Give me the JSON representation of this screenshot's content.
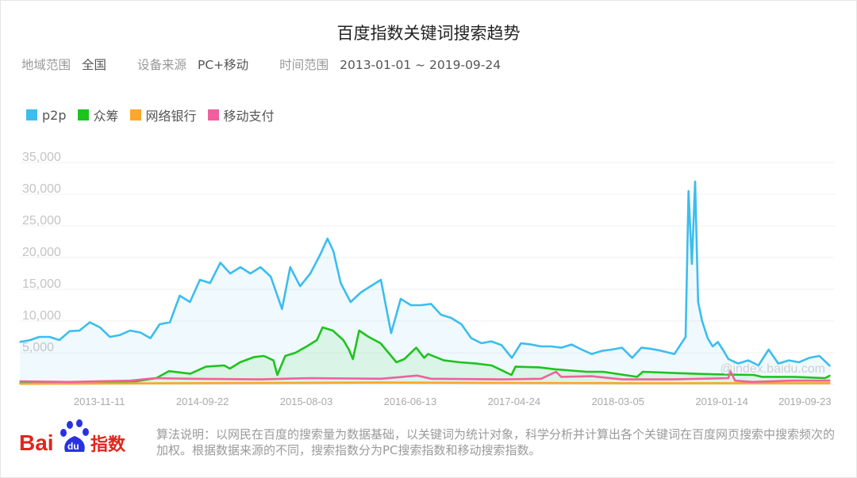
{
  "header": {
    "title": "百度指数关键词搜索趋势",
    "region_label": "地域范围",
    "region_value": "全国",
    "device_label": "设备来源",
    "device_value": "PC+移动",
    "time_label": "时间范围",
    "time_value": "2013-01-01 ~ 2019-09-24"
  },
  "footer": {
    "note": "算法说明：以网民在百度的搜索量为数据基础，以关键词为统计对象，科学分析并计算出各个关键词在百度网页搜索中搜索频次的加权。根据数据来源的不同，搜索指数分为PC搜索指数和移动搜索指数。",
    "logo_text": "Baidu指数",
    "watermark": "@index.baidu.com"
  },
  "chart_data": {
    "type": "area",
    "title": "",
    "xlabel": "",
    "ylabel": "",
    "x_range": [
      "2013-01-01",
      "2019-09-24"
    ],
    "ylim": [
      0,
      35000
    ],
    "grid": true,
    "legend_position": "top-left",
    "y_ticks": [
      "5,000",
      "10,000",
      "15,000",
      "20,000",
      "25,000",
      "30,000",
      "35,000"
    ],
    "y_tick_values": [
      5000,
      10000,
      15000,
      20000,
      25000,
      30000,
      35000
    ],
    "x_ticks": [
      "2013-11-11",
      "2014-09-22",
      "2015-08-03",
      "2016-06-13",
      "2017-04-24",
      "2018-03-05",
      "2019-01-14",
      "2019-09-23"
    ],
    "series": [
      {
        "name": "p2p",
        "color": "#3cbdee",
        "fill": true,
        "points": [
          [
            "2013-01-01",
            6700
          ],
          [
            "2013-02-01",
            7000
          ],
          [
            "2013-03-01",
            7500
          ],
          [
            "2013-04-01",
            7500
          ],
          [
            "2013-05-01",
            7000
          ],
          [
            "2013-06-01",
            8400
          ],
          [
            "2013-07-01",
            8500
          ],
          [
            "2013-08-01",
            9800
          ],
          [
            "2013-09-01",
            9000
          ],
          [
            "2013-10-01",
            7500
          ],
          [
            "2013-11-01",
            7800
          ],
          [
            "2013-12-01",
            8500
          ],
          [
            "2014-01-01",
            8200
          ],
          [
            "2014-02-01",
            7300
          ],
          [
            "2014-03-01",
            9500
          ],
          [
            "2014-04-01",
            9800
          ],
          [
            "2014-05-01",
            14000
          ],
          [
            "2014-06-01",
            13000
          ],
          [
            "2014-07-01",
            16500
          ],
          [
            "2014-08-01",
            16000
          ],
          [
            "2014-09-01",
            19200
          ],
          [
            "2014-10-01",
            17500
          ],
          [
            "2014-11-01",
            18500
          ],
          [
            "2014-12-01",
            17500
          ],
          [
            "2015-01-01",
            18500
          ],
          [
            "2015-02-01",
            17000
          ],
          [
            "2015-03-07",
            11900
          ],
          [
            "2015-04-01",
            18500
          ],
          [
            "2015-05-01",
            15500
          ],
          [
            "2015-06-01",
            17500
          ],
          [
            "2015-07-01",
            20500
          ],
          [
            "2015-07-23",
            23000
          ],
          [
            "2015-08-10",
            21000
          ],
          [
            "2015-09-01",
            16000
          ],
          [
            "2015-10-01",
            13000
          ],
          [
            "2015-11-01",
            14500
          ],
          [
            "2015-12-01",
            15500
          ],
          [
            "2016-01-01",
            16500
          ],
          [
            "2016-02-01",
            8100
          ],
          [
            "2016-03-01",
            13500
          ],
          [
            "2016-04-01",
            12500
          ],
          [
            "2016-05-01",
            12500
          ],
          [
            "2016-06-01",
            12700
          ],
          [
            "2016-07-01",
            11000
          ],
          [
            "2016-08-01",
            10500
          ],
          [
            "2016-09-01",
            9500
          ],
          [
            "2016-10-01",
            7300
          ],
          [
            "2016-11-01",
            6500
          ],
          [
            "2016-12-01",
            6800
          ],
          [
            "2017-01-01",
            6200
          ],
          [
            "2017-02-01",
            4200
          ],
          [
            "2017-03-01",
            6500
          ],
          [
            "2017-04-01",
            6300
          ],
          [
            "2017-05-01",
            6000
          ],
          [
            "2017-06-01",
            6000
          ],
          [
            "2017-07-01",
            5800
          ],
          [
            "2017-08-01",
            6300
          ],
          [
            "2017-09-01",
            5500
          ],
          [
            "2017-10-01",
            4800
          ],
          [
            "2017-11-01",
            5300
          ],
          [
            "2017-12-01",
            5500
          ],
          [
            "2018-01-01",
            5800
          ],
          [
            "2018-02-01",
            4200
          ],
          [
            "2018-03-01",
            5800
          ],
          [
            "2018-04-01",
            5600
          ],
          [
            "2018-05-01",
            5300
          ],
          [
            "2018-06-09",
            4800
          ],
          [
            "2018-07-13",
            7500
          ],
          [
            "2018-07-22",
            30500
          ],
          [
            "2018-08-01",
            19000
          ],
          [
            "2018-08-11",
            32000
          ],
          [
            "2018-08-20",
            13000
          ],
          [
            "2018-09-01",
            10000
          ],
          [
            "2018-09-18",
            7300
          ],
          [
            "2018-10-03",
            6000
          ],
          [
            "2018-10-19",
            6700
          ],
          [
            "2018-11-03",
            5500
          ],
          [
            "2018-11-20",
            4000
          ],
          [
            "2018-12-19",
            3300
          ],
          [
            "2019-01-19",
            3800
          ],
          [
            "2019-02-19",
            3000
          ],
          [
            "2019-03-22",
            5500
          ],
          [
            "2019-04-20",
            3300
          ],
          [
            "2019-05-22",
            3800
          ],
          [
            "2019-06-22",
            3500
          ],
          [
            "2019-07-23",
            4200
          ],
          [
            "2019-08-23",
            4500
          ],
          [
            "2019-09-24",
            2900
          ]
        ]
      },
      {
        "name": "众筹",
        "color": "#1ec31e",
        "fill": true,
        "points": [
          [
            "2013-01-01",
            200
          ],
          [
            "2013-06-01",
            300
          ],
          [
            "2013-12-20",
            500
          ],
          [
            "2014-02-19",
            1000
          ],
          [
            "2014-03-29",
            2100
          ],
          [
            "2014-06-02",
            1700
          ],
          [
            "2014-07-19",
            2800
          ],
          [
            "2014-09-13",
            3000
          ],
          [
            "2014-09-30",
            2500
          ],
          [
            "2014-10-31",
            3500
          ],
          [
            "2014-12-11",
            4300
          ],
          [
            "2015-01-11",
            4500
          ],
          [
            "2015-02-09",
            3800
          ],
          [
            "2015-02-21",
            1500
          ],
          [
            "2015-03-17",
            4500
          ],
          [
            "2015-04-17",
            5000
          ],
          [
            "2015-05-21",
            6000
          ],
          [
            "2015-06-21",
            7000
          ],
          [
            "2015-07-08",
            9000
          ],
          [
            "2015-08-08",
            8500
          ],
          [
            "2015-09-09",
            7000
          ],
          [
            "2015-09-26",
            5500
          ],
          [
            "2015-10-08",
            4000
          ],
          [
            "2015-10-27",
            8500
          ],
          [
            "2015-11-25",
            7500
          ],
          [
            "2015-12-31",
            6500
          ],
          [
            "2016-01-24",
            5000
          ],
          [
            "2016-02-17",
            3500
          ],
          [
            "2016-03-12",
            4000
          ],
          [
            "2016-04-17",
            5800
          ],
          [
            "2016-05-11",
            4200
          ],
          [
            "2016-05-23",
            4800
          ],
          [
            "2016-07-10",
            3800
          ],
          [
            "2016-08-27",
            3500
          ],
          [
            "2016-10-15",
            3300
          ],
          [
            "2016-12-02",
            3000
          ],
          [
            "2017-01-31",
            1500
          ],
          [
            "2017-02-12",
            2800
          ],
          [
            "2017-04-25",
            2700
          ],
          [
            "2017-06-12",
            2400
          ],
          [
            "2017-09-16",
            2000
          ],
          [
            "2017-11-04",
            2000
          ],
          [
            "2018-02-16",
            1200
          ],
          [
            "2018-03-05",
            2000
          ],
          [
            "2018-06-09",
            1800
          ],
          [
            "2018-10-07",
            1600
          ],
          [
            "2019-02-05",
            1500
          ],
          [
            "2019-03-01",
            1200
          ],
          [
            "2019-06-05",
            1200
          ],
          [
            "2019-09-09",
            1000
          ],
          [
            "2019-09-24",
            1400
          ]
        ]
      },
      {
        "name": "网络银行",
        "color": "#fba62c",
        "fill": false,
        "points": [
          [
            "2013-01-01",
            100
          ],
          [
            "2014-06-01",
            200
          ],
          [
            "2016-01-01",
            300
          ],
          [
            "2018-01-01",
            200
          ],
          [
            "2019-09-24",
            200
          ]
        ]
      },
      {
        "name": "移动支付",
        "color": "#f0609e",
        "fill": false,
        "points": [
          [
            "2013-01-01",
            500
          ],
          [
            "2013-06-01",
            400
          ],
          [
            "2013-12-01",
            600
          ],
          [
            "2014-02-15",
            1000
          ],
          [
            "2014-06-01",
            900
          ],
          [
            "2015-01-01",
            800
          ],
          [
            "2015-06-01",
            1000
          ],
          [
            "2016-01-01",
            900
          ],
          [
            "2016-04-20",
            1400
          ],
          [
            "2016-06-01",
            900
          ],
          [
            "2017-01-01",
            800
          ],
          [
            "2017-05-01",
            900
          ],
          [
            "2017-06-15",
            2000
          ],
          [
            "2017-07-01",
            1200
          ],
          [
            "2017-10-01",
            1300
          ],
          [
            "2018-01-01",
            800
          ],
          [
            "2018-06-01",
            800
          ],
          [
            "2018-11-20",
            1000
          ],
          [
            "2018-11-25",
            2200
          ],
          [
            "2018-12-10",
            600
          ],
          [
            "2019-02-01",
            400
          ],
          [
            "2019-06-01",
            600
          ],
          [
            "2019-09-24",
            600
          ]
        ]
      }
    ]
  }
}
